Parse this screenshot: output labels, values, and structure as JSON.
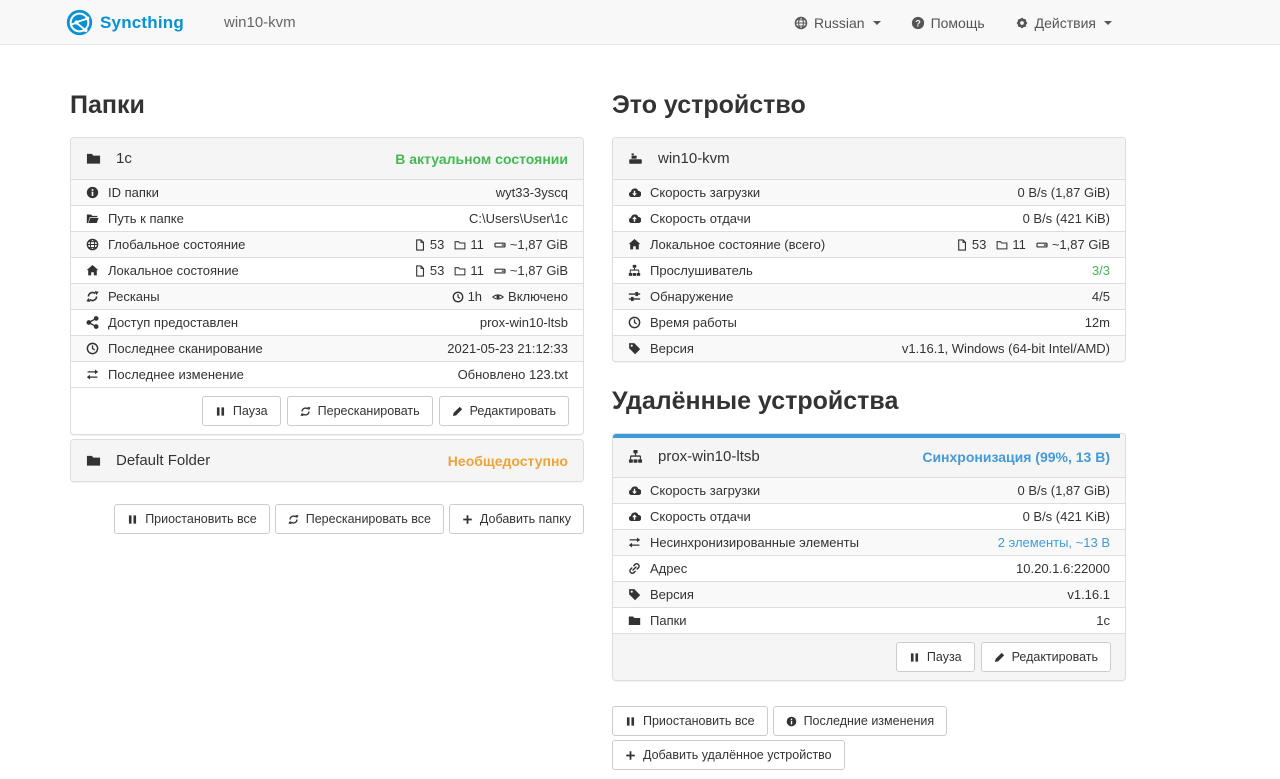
{
  "colors": {
    "brand": "#0891d1",
    "success": "#45b854",
    "warning": "#eda33c",
    "info": "#459ad5",
    "progress": "#3a9bd8"
  },
  "navbar": {
    "brand": "Syncthing",
    "device_title": "win10-kvm",
    "language": {
      "icon": "globe",
      "label": "Russian"
    },
    "help": {
      "icon": "question-circle",
      "label": "Помощь"
    },
    "actions": {
      "icon": "gear",
      "label": "Действия"
    }
  },
  "folders": {
    "heading": "Папки",
    "folder": {
      "icon": "folder",
      "name": "1c",
      "status": "В актуальном состоянии",
      "rows": [
        {
          "icon": "info-circle",
          "label": "ID папки",
          "value": "wyt33-3yscq"
        },
        {
          "icon": "folder-open",
          "label": "Путь к папке",
          "value": "C:\\Users\\User\\1c"
        },
        {
          "icon": "globe",
          "label": "Глобальное состояние",
          "files": "53",
          "dirs": "11",
          "size": "~1,87 GiB"
        },
        {
          "icon": "home",
          "label": "Локальное состояние",
          "files": "53",
          "dirs": "11",
          "size": "~1,87 GiB"
        },
        {
          "icon": "refresh",
          "label": "Ресканы",
          "time": "1h",
          "watch": "Включено"
        },
        {
          "icon": "share",
          "label": "Доступ предоставлен",
          "value": "prox-win10-ltsb"
        },
        {
          "icon": "clock",
          "label": "Последнее сканирование",
          "value": "2021-05-23 21:12:33"
        },
        {
          "icon": "exchange",
          "label": "Последнее изменение",
          "value": "Обновлено 123.txt"
        }
      ],
      "buttons": {
        "pause": {
          "icon": "pause",
          "label": "Пауза"
        },
        "rescan": {
          "icon": "refresh",
          "label": "Пересканировать"
        },
        "edit": {
          "icon": "pencil",
          "label": "Редактировать"
        }
      }
    },
    "default_folder": {
      "icon": "folder",
      "name": "Default Folder",
      "status": "Необщедоступно"
    },
    "footer_buttons": {
      "pause_all": {
        "icon": "pause",
        "label": "Приостановить все"
      },
      "rescan_all": {
        "icon": "refresh",
        "label": "Пересканировать все"
      },
      "add_folder": {
        "icon": "plus",
        "label": "Добавить папку"
      }
    }
  },
  "this_device": {
    "heading": "Это устройство",
    "icon": "device",
    "name": "win10-kvm",
    "rows": [
      {
        "icon": "cloud-down",
        "label": "Скорость загрузки",
        "value": "0 B/s (1,87 GiB)"
      },
      {
        "icon": "cloud-up",
        "label": "Скорость отдачи",
        "value": "0 B/s (421 KiB)"
      },
      {
        "icon": "home",
        "label": "Локальное состояние (всего)",
        "files": "53",
        "dirs": "11",
        "size": "~1,87 GiB"
      },
      {
        "icon": "sitemap",
        "label": "Прослушиватель",
        "value": "3/3"
      },
      {
        "icon": "sliders",
        "label": "Обнаружение",
        "value": "4/5"
      },
      {
        "icon": "clock",
        "label": "Время работы",
        "value": "12m"
      },
      {
        "icon": "tag",
        "label": "Версия",
        "value": "v1.16.1, Windows (64-bit Intel/AMD)"
      }
    ]
  },
  "remote_devices": {
    "heading": "Удалённые устройства",
    "device": {
      "icon": "sitemap",
      "name": "prox-win10-ltsb",
      "status": "Синхронизация (99%, 13 B)",
      "sync_percent": 99,
      "rows": [
        {
          "icon": "cloud-down",
          "label": "Скорость загрузки",
          "value": "0 B/s (1,87 GiB)"
        },
        {
          "icon": "cloud-up",
          "label": "Скорость отдачи",
          "value": "0 B/s (421 KiB)"
        },
        {
          "icon": "exchange",
          "label": "Несинхронизированные элементы",
          "value": "2 элементы, ~13 B"
        },
        {
          "icon": "link",
          "label": "Адрес",
          "value": "10.20.1.6:22000"
        },
        {
          "icon": "tag",
          "label": "Версия",
          "value": "v1.16.1"
        },
        {
          "icon": "folder",
          "label": "Папки",
          "value": "1c"
        }
      ],
      "buttons": {
        "pause": {
          "icon": "pause",
          "label": "Пауза"
        },
        "edit": {
          "icon": "pencil",
          "label": "Редактировать"
        }
      }
    },
    "footer_buttons": {
      "pause_all": {
        "icon": "pause",
        "label": "Приостановить все"
      },
      "recent_changes": {
        "icon": "info-circle",
        "label": "Последние изменения"
      },
      "add_device": {
        "icon": "plus",
        "label": "Добавить удалённое устройство"
      }
    }
  }
}
